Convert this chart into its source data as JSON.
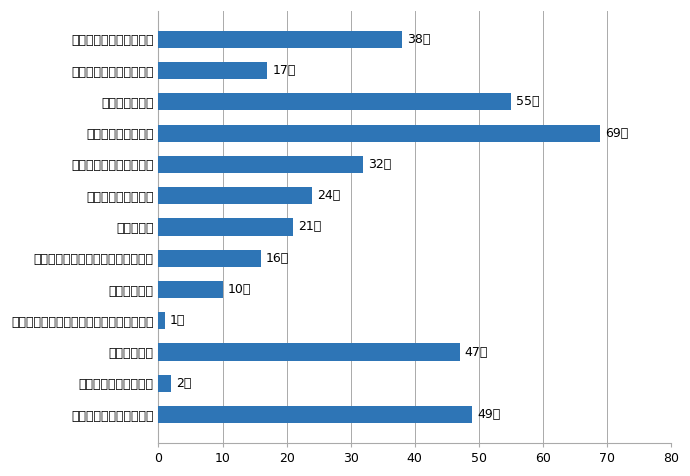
{
  "categories": [
    "その他できることの協力",
    "子ども会の活動の支援",
    "行事の手伝い",
    "子ども会、ジュニアクラブ、ＰＴＡの役員",
    "自治区の役員",
    "ごみステーションの維持管理、監視",
    "花壇の管理",
    "川や水路の美化活動",
    "区民会館や駅周辺の清掃",
    "自宅前の道路の清掃",
    "自宅周辺の草刈",
    "外出時の防犯パトロール",
    "児童の登下校時の見守り"
  ],
  "values": [
    49,
    2,
    47,
    1,
    10,
    16,
    21,
    24,
    32,
    69,
    55,
    17,
    38
  ],
  "bar_color": "#2E75B6",
  "xlim": [
    0,
    80
  ],
  "xticks": [
    0,
    10,
    20,
    30,
    40,
    50,
    60,
    70,
    80
  ],
  "background_color": "#FFFFFF",
  "grid_color": "#AAAAAA",
  "label_suffix": "人",
  "border_color": "#AAAAAA"
}
